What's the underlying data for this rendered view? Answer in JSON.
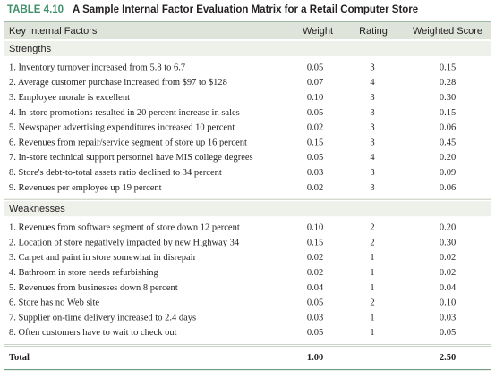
{
  "title": {
    "number": "TABLE 4.10",
    "text": "A Sample Internal Factor Evaluation Matrix for a Retail Computer Store"
  },
  "header": [
    "Key Internal Factors",
    "Weight",
    "Rating",
    "Weighted Score"
  ],
  "sections": [
    {
      "name": "Strengths",
      "rows": [
        [
          "1. Inventory turnover increased from 5.8 to 6.7",
          "0.05",
          "3",
          "0.15"
        ],
        [
          "2. Average customer purchase increased from $97 to $128",
          "0.07",
          "4",
          "0.28"
        ],
        [
          "3. Employee morale is excellent",
          "0.10",
          "3",
          "0.30"
        ],
        [
          "4. In-store promotions resulted in 20 percent increase in sales",
          "0.05",
          "3",
          "0.15"
        ],
        [
          "5. Newspaper advertising expenditures increased 10 percent",
          "0.02",
          "3",
          "0.06"
        ],
        [
          "6. Revenues from repair/service segment of store up 16 percent",
          "0.15",
          "3",
          "0.45"
        ],
        [
          "7. In-store technical support personnel have MIS college degrees",
          "0.05",
          "4",
          "0.20"
        ],
        [
          "8. Store's debt-to-total assets ratio declined to 34 percent",
          "0.03",
          "3",
          "0.09"
        ],
        [
          "9. Revenues per employee up 19 percent",
          "0.02",
          "3",
          "0.06"
        ]
      ]
    },
    {
      "name": "Weaknesses",
      "rows": [
        [
          "1. Revenues from software segment of store down 12 percent",
          "0.10",
          "2",
          "0.20"
        ],
        [
          "2. Location of store negatively impacted by new Highway 34",
          "0.15",
          "2",
          "0.30"
        ],
        [
          "3. Carpet and paint in store somewhat in disrepair",
          "0.02",
          "1",
          "0.02"
        ],
        [
          "4. Bathroom in store needs refurbishing",
          "0.02",
          "1",
          "0.02"
        ],
        [
          "5. Revenues from businesses down 8 percent",
          "0.04",
          "1",
          "0.04"
        ],
        [
          "6. Store has no Web site",
          "0.05",
          "2",
          "0.10"
        ],
        [
          "7. Supplier on-time delivery increased to 2.4 days",
          "0.03",
          "1",
          "0.03"
        ],
        [
          "8. Often customers have to wait to check out",
          "0.05",
          "1",
          "0.05"
        ]
      ]
    }
  ],
  "total": [
    "Total",
    "1.00",
    "2.50"
  ]
}
